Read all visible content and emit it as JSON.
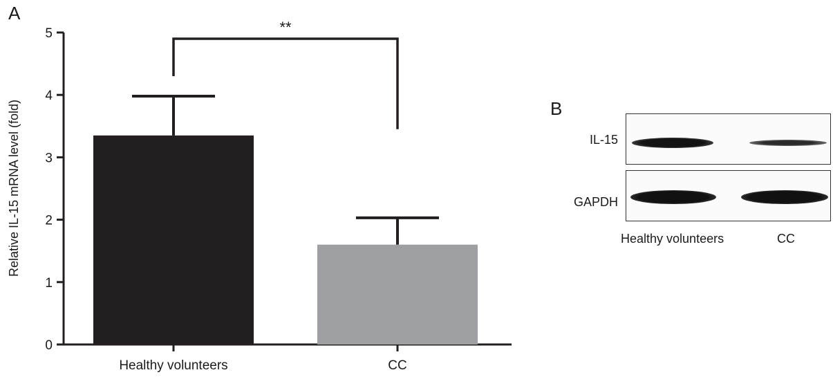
{
  "panels": {
    "a_label": "A",
    "b_label": "B"
  },
  "chart_data": {
    "type": "bar",
    "categories": [
      "Healthy volunteers",
      "CC"
    ],
    "values": [
      3.35,
      1.6
    ],
    "errors": [
      0.63,
      0.43
    ],
    "bar_colors": [
      "#231f20",
      "#9d9fa2"
    ],
    "xlabel": "",
    "ylabel": "Relative IL-15 mRNA level (fold)",
    "ylim": [
      0,
      5
    ],
    "yticks": [
      0,
      1,
      2,
      3,
      4,
      5
    ],
    "significance": {
      "label": "**",
      "between": [
        "Healthy volunteers",
        "CC"
      ]
    },
    "grid": false
  },
  "blot": {
    "rows": [
      {
        "label": "IL-15",
        "band_intensity": [
          1.0,
          0.45
        ]
      },
      {
        "label": "GAPDH",
        "band_intensity": [
          1.0,
          1.0
        ]
      }
    ],
    "lanes": [
      "Healthy volunteers",
      "CC"
    ]
  }
}
